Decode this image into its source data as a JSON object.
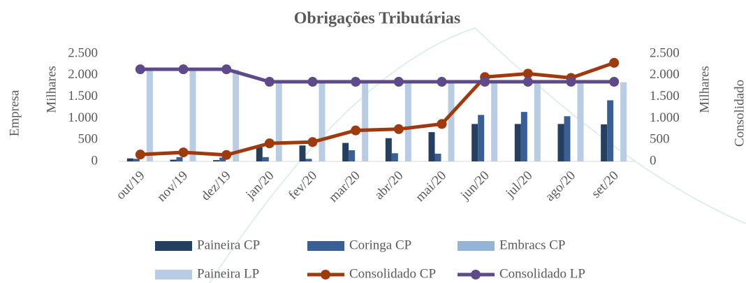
{
  "chart_data": {
    "type": "bar",
    "title": "Obrigações Tributárias",
    "y_label": "Empresa",
    "y_unit": "Milhares",
    "y2_label": "Consolidado",
    "y2_unit": "Milhares",
    "categories": [
      "out/19",
      "nov/19",
      "dez/19",
      "jan/20",
      "fev/20",
      "mar/20",
      "abr/20",
      "mai/20",
      "jun/20",
      "jul/20",
      "ago/20",
      "set/20"
    ],
    "series": [
      {
        "name": "Paineira CP",
        "color": "#243f60",
        "type": "bar",
        "values": [
          70,
          40,
          30,
          330,
          370,
          430,
          540,
          680,
          870,
          870,
          870,
          860
        ]
      },
      {
        "name": "Coringa CP",
        "color": "#3a5f95",
        "type": "bar",
        "values": [
          60,
          100,
          90,
          100,
          60,
          260,
          190,
          180,
          1080,
          1150,
          1050,
          1420
        ]
      },
      {
        "name": "Embracs CP",
        "color": "#95b3d7",
        "type": "bar",
        "values": [
          0,
          0,
          0,
          0,
          0,
          0,
          0,
          0,
          0,
          0,
          0,
          0
        ]
      },
      {
        "name": "Paineira LP",
        "color": "#b8cce4",
        "type": "bar",
        "values": [
          2130,
          2130,
          2130,
          1840,
          1840,
          1840,
          1840,
          1840,
          1840,
          1840,
          1840,
          1840
        ]
      },
      {
        "name": "Consolidado CP",
        "color": "#9e3a0e",
        "type": "line",
        "axis": "y2",
        "values": [
          160,
          210,
          150,
          420,
          450,
          720,
          750,
          870,
          1960,
          2040,
          1940,
          2290
        ]
      },
      {
        "name": "Consolidado LP",
        "color": "#5e4a8a",
        "type": "line",
        "axis": "y2",
        "values": [
          2140,
          2140,
          2140,
          1850,
          1850,
          1850,
          1850,
          1850,
          1850,
          1850,
          1850,
          1850
        ]
      }
    ],
    "ylim": [
      0,
      2500
    ],
    "yticks": [
      0,
      500,
      {
        "value": 1000,
        "label": "1.000"
      },
      {
        "value": 1500,
        "label": "1.500"
      },
      {
        "value": 2000,
        "label": "2.000"
      },
      {
        "value": 2500,
        "label": "2.500"
      }
    ],
    "y2lim": [
      0,
      2500
    ],
    "y2ticks": [
      0,
      500,
      {
        "value": 1000,
        "label": "1.000"
      },
      {
        "value": 1500,
        "label": "1.500"
      },
      {
        "value": 2000,
        "label": "2.000"
      },
      {
        "value": 2500,
        "label": "2.500"
      }
    ],
    "grid": false
  }
}
